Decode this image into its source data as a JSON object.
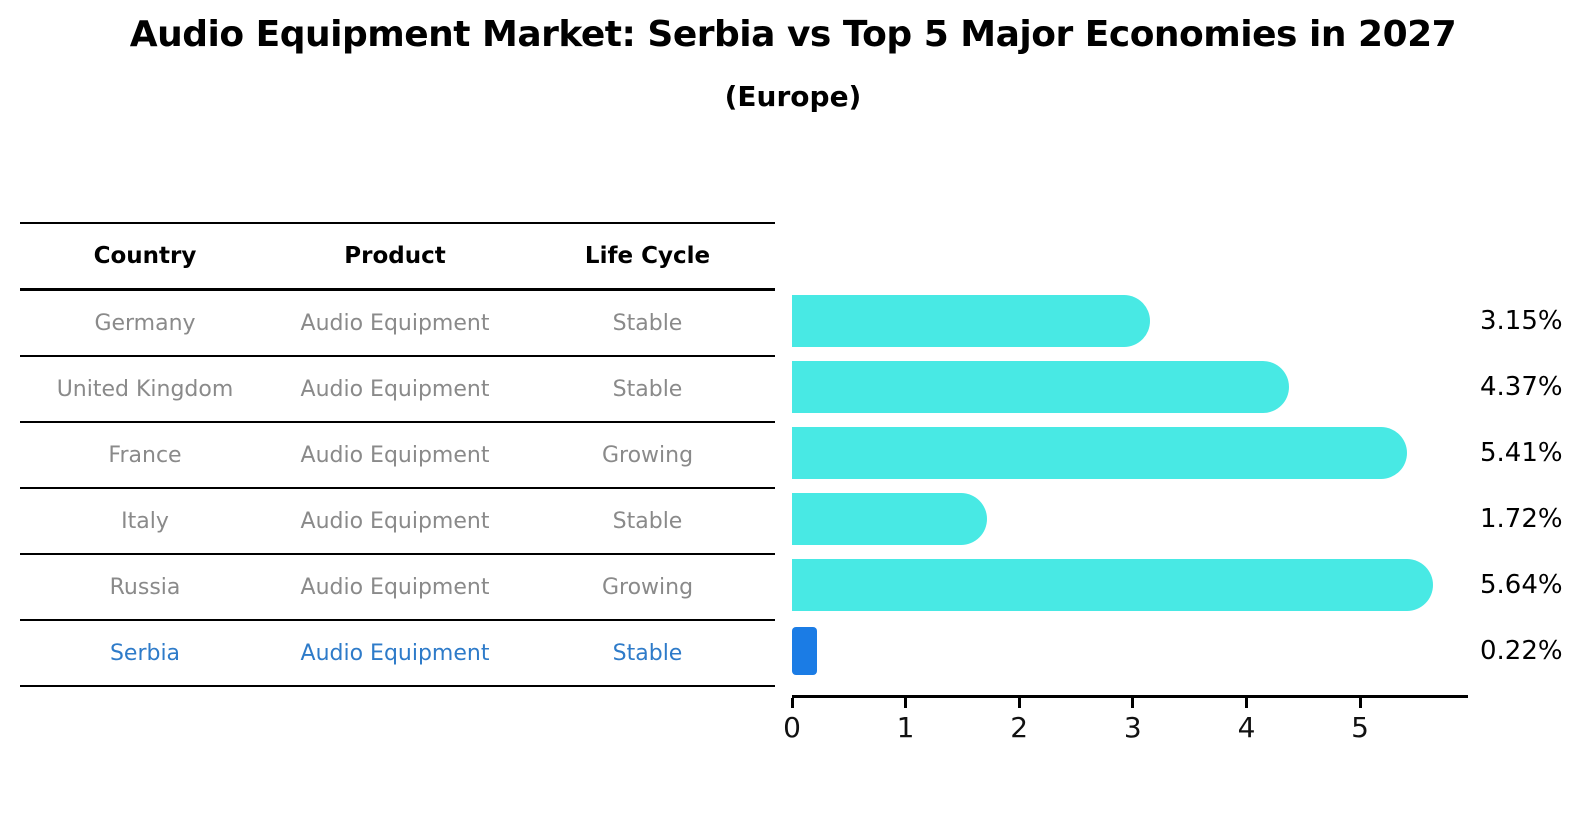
{
  "title": "Audio Equipment Market: Serbia vs Top 5 Major Economies in 2027",
  "subtitle": "(Europe)",
  "table": {
    "columns": [
      "Country",
      "Product",
      "Life Cycle"
    ],
    "rows": [
      {
        "country": "Germany",
        "product": "Audio Equipment",
        "life_cycle": "Stable",
        "highlight": false
      },
      {
        "country": "United Kingdom",
        "product": "Audio Equipment",
        "life_cycle": "Stable",
        "highlight": false
      },
      {
        "country": "France",
        "product": "Audio Equipment",
        "life_cycle": "Growing",
        "highlight": false
      },
      {
        "country": "Italy",
        "product": "Audio Equipment",
        "life_cycle": "Stable",
        "highlight": false
      },
      {
        "country": "Russia",
        "product": "Audio Equipment",
        "life_cycle": "Growing",
        "highlight": false
      },
      {
        "country": "Serbia",
        "product": "Audio Equipment",
        "life_cycle": "Stable",
        "highlight": true
      }
    ]
  },
  "chart_data": {
    "type": "bar",
    "orientation": "horizontal",
    "title": "Audio Equipment Market: Serbia vs Top 5 Major Economies in 2027 (Europe)",
    "categories": [
      "Germany",
      "United Kingdom",
      "France",
      "Italy",
      "Russia",
      "Serbia"
    ],
    "values": [
      3.15,
      4.37,
      5.41,
      1.72,
      5.64,
      0.22
    ],
    "value_labels": [
      "3.15%",
      "4.37%",
      "5.41%",
      "1.72%",
      "5.64%",
      "0.22%"
    ],
    "xlabel": "",
    "ylabel": "",
    "xticks": [
      0,
      1,
      2,
      3,
      4,
      5
    ],
    "xlim": [
      0,
      5.95
    ],
    "grid": false,
    "legend": "none",
    "bar_color": "#48E9E4",
    "highlight_color": "#1B7CE5",
    "highlight_index": 5,
    "highlight_text_color": "#2E7BC9"
  }
}
